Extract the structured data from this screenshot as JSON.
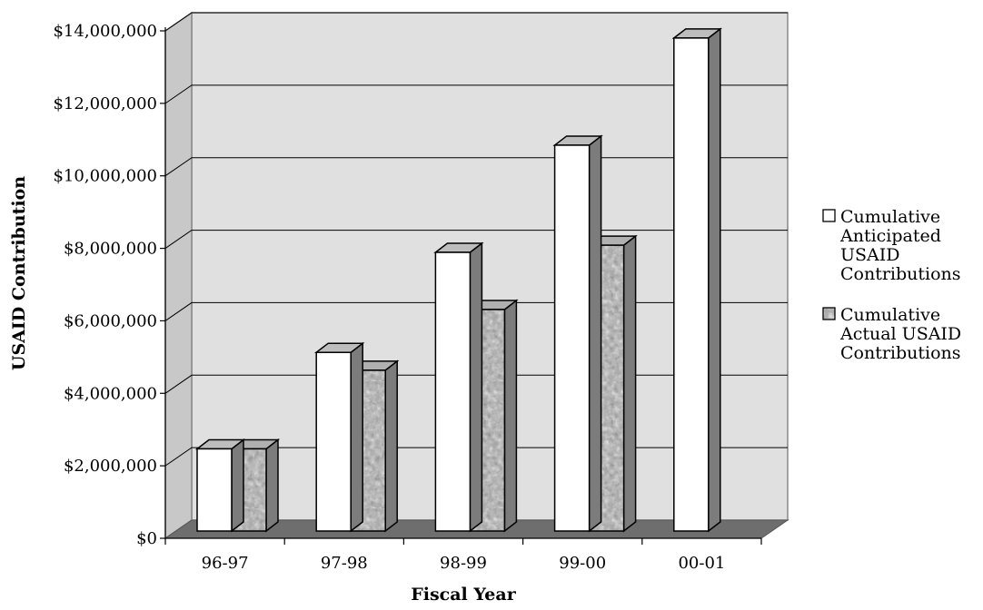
{
  "chart_data": {
    "type": "bar",
    "title": "",
    "xlabel": "Fiscal Year",
    "ylabel": "USAID Contribution",
    "categories": [
      "96-97",
      "97-98",
      "98-99",
      "99-00",
      "00-01"
    ],
    "ylim": [
      0,
      14000000
    ],
    "yticks": [
      {
        "value": 0,
        "label": "$0"
      },
      {
        "value": 2000000,
        "label": "$2,000,000"
      },
      {
        "value": 4000000,
        "label": "$4,000,000"
      },
      {
        "value": 6000000,
        "label": "$6,000,000"
      },
      {
        "value": 8000000,
        "label": "$8,000,000"
      },
      {
        "value": 10000000,
        "label": "$10,000,000"
      },
      {
        "value": 12000000,
        "label": "$12,000,000"
      },
      {
        "value": 14000000,
        "label": "$14,000,000"
      }
    ],
    "series": [
      {
        "name_lines": [
          "Cumulative",
          "Anticipated",
          "USAID",
          "Contributions"
        ],
        "values": [
          2300000,
          5000000,
          7800000,
          10800000,
          13800000
        ],
        "color": "#ffffff"
      },
      {
        "name_lines": [
          "Cumulative",
          "Actual USAID",
          "Contributions"
        ],
        "values": [
          2300000,
          4500000,
          6200000,
          8000000,
          null
        ],
        "color": "#9a9a9a"
      }
    ],
    "grid": true,
    "legend": "right",
    "style": "3d"
  }
}
